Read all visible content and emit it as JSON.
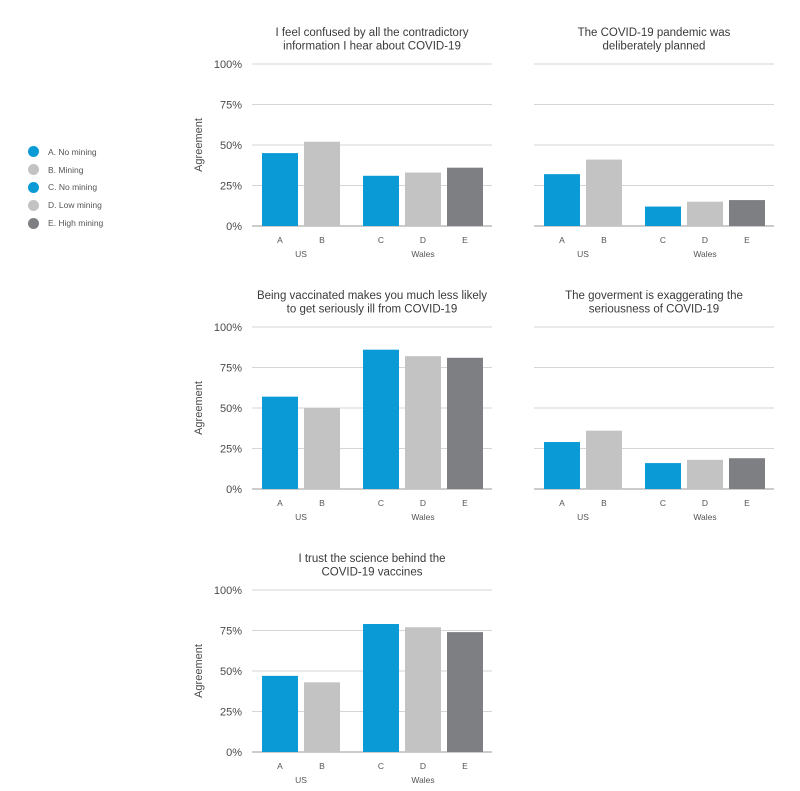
{
  "legend": [
    {
      "label": "A. No mining",
      "color": "#0a9bd7"
    },
    {
      "label": "B. Mining",
      "color": "#c3c3c3"
    },
    {
      "label": "C. No mining",
      "color": "#0a9bd7"
    },
    {
      "label": "D. Low mining",
      "color": "#c3c3c3"
    },
    {
      "label": "E. High mining",
      "color": "#7e7f83"
    }
  ],
  "chart_data": [
    {
      "type": "bar",
      "title": [
        "I feel confused by all the contradictory",
        "information I hear about COVID-19"
      ],
      "ylabel": "Agreement",
      "ylim": [
        0,
        100
      ],
      "yticks": [
        "0%",
        "25%",
        "50%",
        "75%",
        "100%"
      ],
      "categories": [
        "A",
        "B",
        "C",
        "D",
        "E"
      ],
      "groups": [
        "US",
        "US",
        "Wales",
        "Wales",
        "Wales"
      ],
      "values": [
        45,
        52,
        31,
        33,
        36
      ],
      "colors": [
        "#0a9bd7",
        "#c3c3c3",
        "#0a9bd7",
        "#c3c3c3",
        "#7e7f83"
      ],
      "grid": true
    },
    {
      "type": "bar",
      "title": [
        "The COVID-19 pandemic was",
        "deliberately planned"
      ],
      "ylabel": "",
      "ylim": [
        0,
        100
      ],
      "yticks": [],
      "categories": [
        "A",
        "B",
        "C",
        "D",
        "E"
      ],
      "groups": [
        "US",
        "US",
        "Wales",
        "Wales",
        "Wales"
      ],
      "values": [
        32,
        41,
        12,
        15,
        16
      ],
      "colors": [
        "#0a9bd7",
        "#c3c3c3",
        "#0a9bd7",
        "#c3c3c3",
        "#7e7f83"
      ],
      "grid": true
    },
    {
      "type": "bar",
      "title": [
        "Being vaccinated makes you much less likely",
        "to get seriously ill from COVID-19"
      ],
      "ylabel": "Agreement",
      "ylim": [
        0,
        100
      ],
      "yticks": [
        "0%",
        "25%",
        "50%",
        "75%",
        "100%"
      ],
      "categories": [
        "A",
        "B",
        "C",
        "D",
        "E"
      ],
      "groups": [
        "US",
        "US",
        "Wales",
        "Wales",
        "Wales"
      ],
      "values": [
        57,
        50,
        86,
        82,
        81
      ],
      "colors": [
        "#0a9bd7",
        "#c3c3c3",
        "#0a9bd7",
        "#c3c3c3",
        "#7e7f83"
      ],
      "grid": true
    },
    {
      "type": "bar",
      "title": [
        "The goverment is exaggerating the",
        "seriousness of COVID-19"
      ],
      "ylabel": "",
      "ylim": [
        0,
        100
      ],
      "yticks": [],
      "categories": [
        "A",
        "B",
        "C",
        "D",
        "E"
      ],
      "groups": [
        "US",
        "US",
        "Wales",
        "Wales",
        "Wales"
      ],
      "values": [
        29,
        36,
        16,
        18,
        19
      ],
      "colors": [
        "#0a9bd7",
        "#c3c3c3",
        "#0a9bd7",
        "#c3c3c3",
        "#7e7f83"
      ],
      "grid": true
    },
    {
      "type": "bar",
      "title": [
        "I trust the science behind the",
        "COVID-19 vaccines"
      ],
      "ylabel": "Agreement",
      "ylim": [
        0,
        100
      ],
      "yticks": [
        "0%",
        "25%",
        "50%",
        "75%",
        "100%"
      ],
      "categories": [
        "A",
        "B",
        "C",
        "D",
        "E"
      ],
      "groups": [
        "US",
        "US",
        "Wales",
        "Wales",
        "Wales"
      ],
      "values": [
        47,
        43,
        79,
        77,
        74
      ],
      "colors": [
        "#0a9bd7",
        "#c3c3c3",
        "#0a9bd7",
        "#c3c3c3",
        "#7e7f83"
      ],
      "grid": true
    }
  ]
}
